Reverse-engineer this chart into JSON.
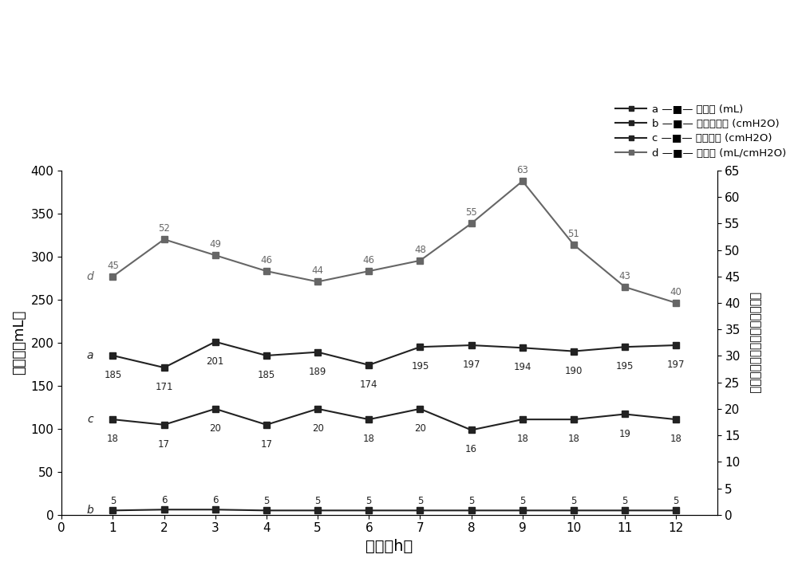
{
  "x": [
    1,
    2,
    3,
    4,
    5,
    6,
    7,
    8,
    9,
    10,
    11,
    12
  ],
  "series_a": [
    185,
    171,
    201,
    185,
    189,
    174,
    195,
    197,
    194,
    190,
    195,
    197
  ],
  "series_b": [
    5,
    6,
    6,
    5,
    5,
    5,
    5,
    5,
    5,
    5,
    5,
    5
  ],
  "series_c": [
    18,
    17,
    20,
    17,
    20,
    18,
    20,
    16,
    18,
    18,
    19,
    18
  ],
  "series_d": [
    45,
    52,
    49,
    46,
    44,
    46,
    48,
    55,
    63,
    51,
    43,
    40
  ],
  "color_dark": "#222222",
  "color_mid": "#666666",
  "left_ylabel": "潮气量（mL）",
  "right_ylabel": "呼气末正压、气道峰压、顺应性",
  "xlabel": "时间（h）",
  "left_ylim": [
    0,
    400
  ],
  "right_ylim": [
    0,
    65
  ],
  "left_yticks": [
    0,
    50,
    100,
    150,
    200,
    250,
    300,
    350,
    400
  ],
  "right_yticks": [
    0,
    5,
    10,
    15,
    20,
    25,
    30,
    35,
    40,
    45,
    50,
    55,
    60,
    65
  ],
  "background_color": "#ffffff",
  "marker": "s",
  "markersize": 6,
  "linewidth": 1.5,
  "legend_labels": [
    "a —■— 潮气量 (mL)",
    "b —■— 呼气末正压 (cmH2O)",
    "c —■— 气道峰压 (cmH2O)",
    "d —■— 顺应性 (mL/cmH2O)"
  ]
}
